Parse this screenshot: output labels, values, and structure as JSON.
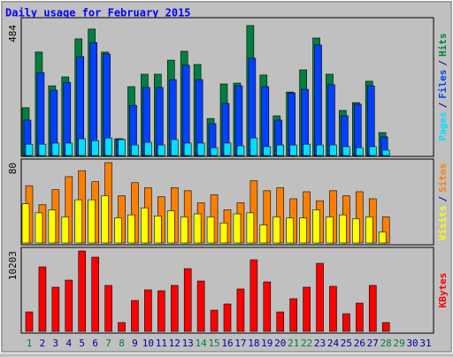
{
  "title": "Daily usage for February 2015",
  "legend_separator": "/",
  "chart_data": [
    {
      "type": "bar",
      "ylim": [
        0,
        484
      ],
      "yticks": [
        484
      ],
      "series": [
        {
          "name": "Hits",
          "color": "#008040",
          "values": [
            177,
            383,
            258,
            291,
            432,
            468,
            383,
            62,
            255,
            301,
            301,
            353,
            386,
            337,
            137,
            265,
            268,
            481,
            298,
            147,
            235,
            317,
            435,
            301,
            167,
            196,
            275,
            85,
            null,
            null,
            null
          ]
        },
        {
          "name": "Files",
          "color": "#0040ff",
          "values": [
            131,
            307,
            242,
            271,
            366,
            418,
            376,
            62,
            186,
            252,
            252,
            281,
            334,
            281,
            118,
            193,
            258,
            360,
            255,
            131,
            232,
            245,
            409,
            262,
            147,
            190,
            258,
            69,
            null,
            null,
            null
          ]
        },
        {
          "name": "Pages",
          "color": "#00e0ff",
          "values": [
            42,
            42,
            46,
            46,
            62,
            55,
            65,
            59,
            39,
            49,
            39,
            59,
            46,
            46,
            29,
            46,
            36,
            65,
            33,
            39,
            39,
            42,
            39,
            39,
            33,
            29,
            33,
            20,
            null,
            null,
            null
          ]
        }
      ]
    },
    {
      "type": "bar",
      "ylim": [
        0,
        80
      ],
      "yticks": [
        80
      ],
      "series": [
        {
          "name": "Sites",
          "color": "#ff8000",
          "values": [
            57,
            38,
            53,
            66,
            72,
            61,
            80,
            47,
            60,
            55,
            46,
            55,
            52,
            40,
            48,
            33,
            40,
            62,
            52,
            55,
            44,
            51,
            42,
            52,
            47,
            51,
            44,
            26,
            null,
            null,
            null
          ]
        },
        {
          "name": "Visits",
          "color": "#ffff00",
          "values": [
            39,
            30,
            33,
            26,
            43,
            43,
            47,
            25,
            28,
            35,
            27,
            32,
            26,
            29,
            26,
            20,
            29,
            30,
            18,
            26,
            25,
            25,
            33,
            26,
            28,
            24,
            26,
            11,
            null,
            null,
            null
          ]
        }
      ]
    },
    {
      "type": "bar",
      "ylim": [
        0,
        10203
      ],
      "yticks": [
        10203
      ],
      "categories": [
        "1",
        "2",
        "3",
        "4",
        "5",
        "6",
        "7",
        "8",
        "9",
        "10",
        "11",
        "12",
        "13",
        "14",
        "15",
        "16",
        "17",
        "18",
        "19",
        "20",
        "21",
        "22",
        "23",
        "24",
        "25",
        "26",
        "27",
        "28",
        "29",
        "30",
        "31"
      ],
      "category_colors": [
        "#008040",
        "#0000a0",
        "#0000a0",
        "#0000a0",
        "#0000a0",
        "#0000a0",
        "#008040",
        "#008040",
        "#0000a0",
        "#0000a0",
        "#0000a0",
        "#0000a0",
        "#0000a0",
        "#008040",
        "#008040",
        "#0000a0",
        "#0000a0",
        "#0000a0",
        "#0000a0",
        "#0000a0",
        "#008040",
        "#008040",
        "#0000a0",
        "#0000a0",
        "#0000a0",
        "#0000a0",
        "#0000a0",
        "#008040",
        "#008040",
        "#0000a0",
        "#0000a0"
      ],
      "series": [
        {
          "name": "KBytes",
          "color": "#ff0000",
          "values": [
            2466,
            8185,
            5606,
            6503,
            10203,
            9418,
            5830,
            1121,
            3924,
            5270,
            5157,
            5830,
            7960,
            6390,
            2691,
            3476,
            5382,
            9081,
            6278,
            2466,
            4148,
            5606,
            8633,
            5718,
            2242,
            3588,
            5830,
            1121,
            null,
            null,
            null
          ]
        }
      ]
    }
  ]
}
